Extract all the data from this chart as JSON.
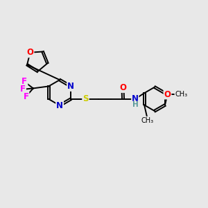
{
  "background_color": "#e8e8e8",
  "atom_colors": {
    "O": "#ff0000",
    "N": "#0000cc",
    "S": "#cccc00",
    "F": "#ff00ff",
    "C": "#000000",
    "H": "#5a9a9a"
  },
  "bond_color": "#000000",
  "bond_width": 1.4,
  "font_size": 8.5
}
